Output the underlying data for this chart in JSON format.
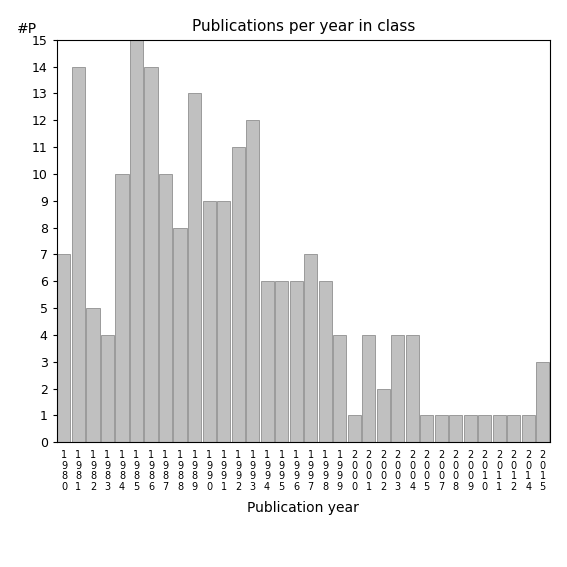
{
  "title": "Publications per year in class",
  "xlabel": "Publication year",
  "ylabel": "#P",
  "bar_color": "#c0c0c0",
  "bar_edge_color": "#808080",
  "categories": [
    "1980",
    "1981",
    "1982",
    "1983",
    "1984",
    "1985",
    "1986",
    "1987",
    "1988",
    "1989",
    "1990",
    "1991",
    "1992",
    "1993",
    "1994",
    "1995",
    "1996",
    "1997",
    "1998",
    "1999",
    "2000",
    "2001",
    "2002",
    "2003",
    "2004",
    "2005",
    "2007",
    "2008",
    "2009",
    "2010",
    "2011",
    "2012",
    "2014",
    "2015"
  ],
  "values": [
    7,
    14,
    5,
    4,
    10,
    15,
    14,
    10,
    8,
    13,
    9,
    9,
    11,
    12,
    6,
    6,
    6,
    7,
    6,
    4,
    1,
    4,
    2,
    4,
    4,
    1,
    1,
    1,
    1,
    1,
    1,
    1,
    1,
    3
  ],
  "ylim": [
    0,
    15
  ],
  "yticks": [
    0,
    1,
    2,
    3,
    4,
    5,
    6,
    7,
    8,
    9,
    10,
    11,
    12,
    13,
    14,
    15
  ],
  "figsize": [
    5.67,
    5.67
  ],
  "dpi": 100
}
